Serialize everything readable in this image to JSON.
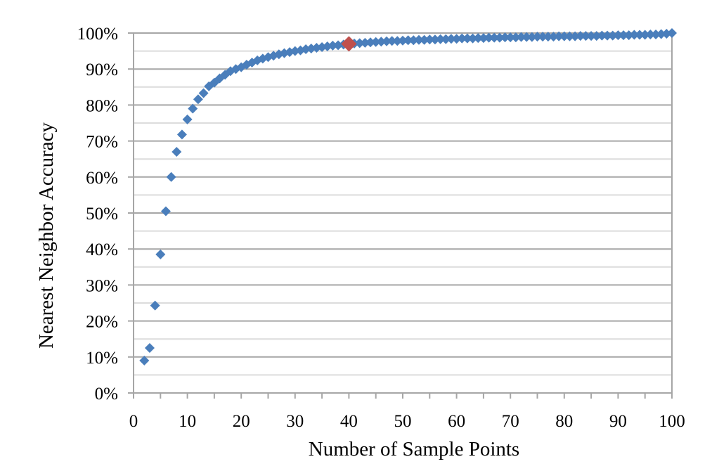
{
  "chart_data": {
    "type": "scatter",
    "xlabel": "Number of Sample Points",
    "ylabel": "Nearest Neighbor Accuracy",
    "xlim": [
      0,
      100
    ],
    "ylim": [
      0,
      1
    ],
    "x_ticks": [
      0,
      10,
      20,
      30,
      40,
      50,
      60,
      70,
      80,
      90,
      100
    ],
    "x_tick_labels": [
      "0",
      "10",
      "20",
      "30",
      "40",
      "50",
      "60",
      "70",
      "80",
      "90",
      "100"
    ],
    "y_ticks": [
      0,
      0.1,
      0.2,
      0.3,
      0.4,
      0.5,
      0.6,
      0.7,
      0.8,
      0.9,
      1.0
    ],
    "y_tick_labels": [
      "0%",
      "10%",
      "20%",
      "30%",
      "40%",
      "50%",
      "60%",
      "70%",
      "80%",
      "90%",
      "100%"
    ],
    "grid": true,
    "series": [
      {
        "color": "#4a7ebb",
        "marker": "diamond",
        "x": [
          2,
          3,
          4,
          5,
          6,
          7,
          8,
          9,
          10,
          11,
          12,
          13,
          14,
          15,
          16,
          17,
          18,
          19,
          20,
          21,
          22,
          23,
          24,
          25,
          26,
          27,
          28,
          29,
          30,
          31,
          32,
          33,
          34,
          35,
          36,
          37,
          38,
          39,
          41,
          42,
          43,
          44,
          45,
          46,
          47,
          48,
          49,
          50,
          51,
          52,
          53,
          54,
          55,
          56,
          57,
          58,
          59,
          60,
          61,
          62,
          63,
          64,
          65,
          66,
          67,
          68,
          69,
          70,
          71,
          72,
          73,
          74,
          75,
          76,
          77,
          78,
          79,
          80,
          81,
          82,
          83,
          84,
          85,
          86,
          87,
          88,
          89,
          90,
          91,
          92,
          93,
          94,
          95,
          96,
          97,
          98,
          99,
          100
        ],
        "y": [
          0.09,
          0.125,
          0.243,
          0.385,
          0.505,
          0.6,
          0.67,
          0.718,
          0.76,
          0.79,
          0.816,
          0.833,
          0.852,
          0.862,
          0.874,
          0.884,
          0.894,
          0.9,
          0.905,
          0.912,
          0.918,
          0.924,
          0.929,
          0.933,
          0.937,
          0.941,
          0.944,
          0.947,
          0.95,
          0.952,
          0.955,
          0.957,
          0.959,
          0.961,
          0.963,
          0.965,
          0.966,
          0.968,
          0.971,
          0.972,
          0.973,
          0.974,
          0.975,
          0.976,
          0.977,
          0.978,
          0.978,
          0.979,
          0.98,
          0.98,
          0.981,
          0.981,
          0.982,
          0.982,
          0.983,
          0.983,
          0.984,
          0.984,
          0.985,
          0.985,
          0.985,
          0.986,
          0.986,
          0.987,
          0.987,
          0.987,
          0.988,
          0.988,
          0.988,
          0.989,
          0.989,
          0.989,
          0.99,
          0.99,
          0.99,
          0.99,
          0.991,
          0.991,
          0.991,
          0.991,
          0.992,
          0.992,
          0.992,
          0.992,
          0.993,
          0.993,
          0.993,
          0.994,
          0.994,
          0.994,
          0.995,
          0.995,
          0.995,
          0.996,
          0.996,
          0.997,
          0.998,
          1.0
        ]
      },
      {
        "color": "#c0504d",
        "marker": "diamond",
        "x": [
          40
        ],
        "y": [
          0.97
        ]
      }
    ]
  }
}
